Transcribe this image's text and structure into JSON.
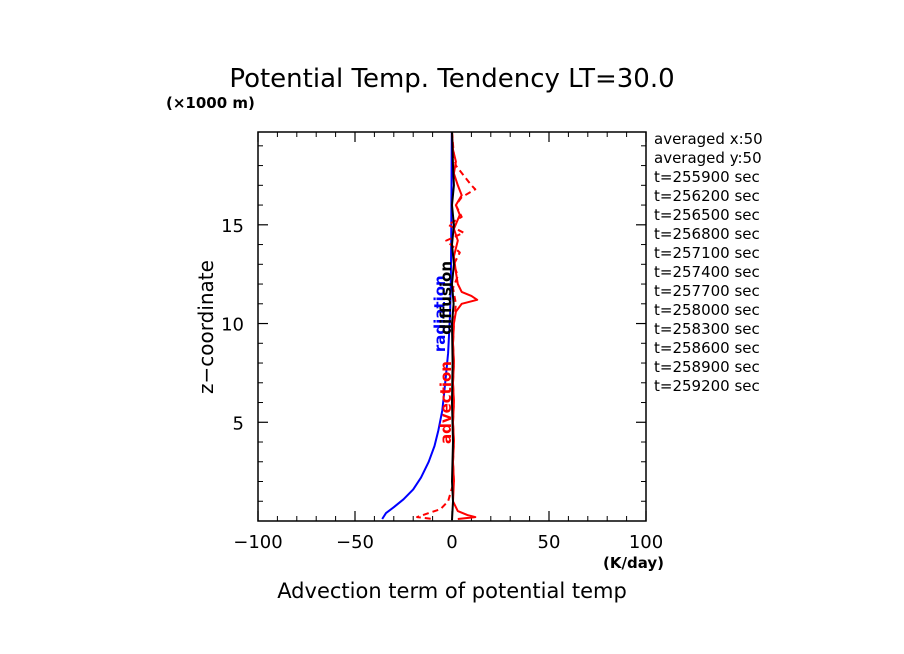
{
  "chart_data": {
    "type": "line",
    "title": "Potential Temp. Tendency LT=30.0",
    "xlabel": "Advection term of potential temp",
    "ylabel": "z−coordinate",
    "y_unit": "(×1000 m)",
    "x_unit": "(K/day)",
    "xlim": [
      -100,
      100
    ],
    "ylim": [
      0,
      19.7
    ],
    "xticks": [
      -100,
      -50,
      0,
      50,
      100
    ],
    "xtick_labels": [
      "−100",
      "−50",
      "0",
      "50",
      "100"
    ],
    "yticks": [
      5,
      10,
      15
    ],
    "ytick_labels": [
      "5",
      "10",
      "15"
    ],
    "legend": [
      "averaged  x:50",
      "averaged  y:50",
      "t=255900 sec",
      "t=256200 sec",
      "t=256500 sec",
      "t=256800 sec",
      "t=257100 sec",
      "t=257400 sec",
      "t=257700 sec",
      "t=258000 sec",
      "t=258300 sec",
      "t=258600 sec",
      "t=258900 sec",
      "t=259200 sec"
    ],
    "annotations": [
      "radiation",
      "advection",
      "diffusion"
    ],
    "colors": {
      "radiation": "#0000ff",
      "advection": "#ff0000",
      "diffusion": "#000000"
    },
    "series": [
      {
        "name": "radiation",
        "style": "solid",
        "points": [
          [
            -36,
            0.1
          ],
          [
            -34,
            0.4
          ],
          [
            -30,
            0.7
          ],
          [
            -25,
            1.1
          ],
          [
            -20,
            1.6
          ],
          [
            -16,
            2.2
          ],
          [
            -12,
            3.0
          ],
          [
            -9,
            3.8
          ],
          [
            -7,
            4.6
          ],
          [
            -5,
            5.6
          ],
          [
            -4,
            6.5
          ],
          [
            -3,
            7.5
          ],
          [
            -2,
            8.5
          ],
          [
            -1.5,
            9.5
          ],
          [
            -1,
            10.5
          ],
          [
            -0.6,
            12
          ],
          [
            -0.4,
            14
          ],
          [
            -0.3,
            16
          ],
          [
            -0.2,
            18
          ],
          [
            -0.1,
            19.7
          ]
        ]
      },
      {
        "name": "advection",
        "style": "solid",
        "points": [
          [
            0,
            19.7
          ],
          [
            0.5,
            18.8
          ],
          [
            2,
            18.2
          ],
          [
            1,
            17.6
          ],
          [
            3,
            17.0
          ],
          [
            5,
            16.5
          ],
          [
            2,
            16.0
          ],
          [
            4,
            15.5
          ],
          [
            1,
            14.8
          ],
          [
            3,
            14.2
          ],
          [
            1,
            13.4
          ],
          [
            2,
            12.6
          ],
          [
            3,
            12.0
          ],
          [
            5,
            11.6
          ],
          [
            10,
            11.4
          ],
          [
            13,
            11.2
          ],
          [
            5,
            11.0
          ],
          [
            2,
            10.6
          ],
          [
            1,
            10.0
          ],
          [
            0.5,
            9.0
          ],
          [
            1,
            8.0
          ],
          [
            0.5,
            7.0
          ],
          [
            1,
            6.0
          ],
          [
            0.5,
            5.0
          ],
          [
            1,
            4.0
          ],
          [
            0.5,
            3.0
          ],
          [
            1,
            2.0
          ],
          [
            0.5,
            1.0
          ],
          [
            3,
            0.5
          ],
          [
            8,
            0.3
          ],
          [
            12,
            0.2
          ],
          [
            3,
            0.1
          ]
        ]
      },
      {
        "name": "advection",
        "style": "dashed",
        "points": [
          [
            0,
            19.7
          ],
          [
            1,
            18.5
          ],
          [
            2,
            18.0
          ],
          [
            6,
            17.5
          ],
          [
            10,
            17.0
          ],
          [
            12,
            16.8
          ],
          [
            5,
            16.4
          ],
          [
            2,
            16.0
          ],
          [
            5,
            15.4
          ],
          [
            -2,
            15.0
          ],
          [
            6,
            14.6
          ],
          [
            -3,
            14.2
          ],
          [
            4,
            13.6
          ],
          [
            1,
            13.0
          ],
          [
            3,
            12.4
          ],
          [
            0.5,
            11.8
          ],
          [
            2,
            11.0
          ],
          [
            1,
            10.0
          ],
          [
            0.5,
            9.0
          ],
          [
            1,
            8.0
          ],
          [
            0.5,
            7.0
          ],
          [
            1,
            6.0
          ],
          [
            0.5,
            5.0
          ],
          [
            1,
            4.0
          ],
          [
            0.5,
            3.0
          ],
          [
            1,
            2.0
          ],
          [
            -2,
            1.0
          ],
          [
            -6,
            0.6
          ],
          [
            -12,
            0.4
          ],
          [
            -18,
            0.2
          ],
          [
            -10,
            0.1
          ]
        ]
      },
      {
        "name": "diffusion",
        "style": "solid",
        "points": [
          [
            0,
            0.05
          ],
          [
            0.5,
            1
          ],
          [
            0,
            2
          ],
          [
            0.5,
            4
          ],
          [
            0,
            6
          ],
          [
            0.3,
            8
          ],
          [
            0,
            10
          ],
          [
            0.8,
            11
          ],
          [
            0,
            12
          ],
          [
            1,
            13
          ],
          [
            0,
            14
          ],
          [
            1,
            15
          ],
          [
            0,
            16
          ],
          [
            1,
            17
          ],
          [
            0.5,
            18
          ],
          [
            0,
            19.7
          ]
        ]
      }
    ]
  }
}
